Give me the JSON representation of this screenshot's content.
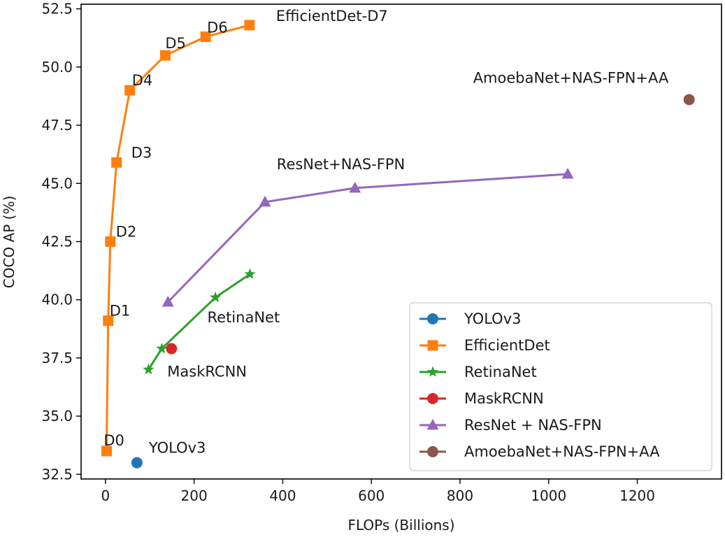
{
  "chart_data": {
    "type": "line",
    "xlabel": "FLOPs (Billions)",
    "ylabel": "COCO AP (%)",
    "xlim": [
      -55,
      1390
    ],
    "ylim": [
      32.3,
      52.7
    ],
    "xticks": [
      0,
      200,
      400,
      600,
      800,
      1000,
      1200
    ],
    "yticks": [
      32.5,
      35.0,
      37.5,
      40.0,
      42.5,
      45.0,
      47.5,
      50.0,
      52.5
    ],
    "xtick_labels": [
      "0",
      "200",
      "400",
      "600",
      "800",
      "1000",
      "1200"
    ],
    "ytick_labels": [
      "32.5",
      "35.0",
      "37.5",
      "40.0",
      "42.5",
      "45.0",
      "47.5",
      "50.0",
      "52.5"
    ],
    "legend_position": "lower-right",
    "series": [
      {
        "name": "YOLOv3",
        "color": "#1f77b4",
        "marker": "circle",
        "line": false,
        "x": [
          71
        ],
        "y": [
          33.0
        ]
      },
      {
        "name": "EfficientDet",
        "color": "#ff7f0e",
        "marker": "square",
        "line": true,
        "x": [
          2.5,
          6.1,
          11,
          25,
          55,
          135,
          226,
          325
        ],
        "y": [
          33.5,
          39.1,
          42.5,
          45.9,
          49.0,
          50.5,
          51.3,
          51.8
        ]
      },
      {
        "name": "RetinaNet",
        "color": "#2ca02c",
        "marker": "star",
        "line": true,
        "x": [
          97,
          127,
          248,
          326
        ],
        "y": [
          37.0,
          37.9,
          40.1,
          41.1
        ]
      },
      {
        "name": "MaskRCNN",
        "color": "#d62728",
        "marker": "circle",
        "line": false,
        "x": [
          149
        ],
        "y": [
          37.9
        ]
      },
      {
        "name": "ResNet + NAS-FPN",
        "color": "#9467bd",
        "marker": "triangle",
        "line": true,
        "x": [
          141,
          360,
          563,
          1043
        ],
        "y": [
          39.9,
          44.2,
          44.8,
          45.4
        ]
      },
      {
        "name": "AmoebaNet+NAS-FPN+AA",
        "color": "#8c564b",
        "marker": "circle",
        "line": false,
        "x": [
          1317
        ],
        "y": [
          48.6
        ]
      }
    ],
    "annotations": [
      {
        "text": "D0",
        "x": 2.5,
        "y": 33.5
      },
      {
        "text": "D1",
        "x": 6.1,
        "y": 39.1
      },
      {
        "text": "D2",
        "x": 11,
        "y": 42.5
      },
      {
        "text": "D3",
        "x": 25,
        "y": 45.9
      },
      {
        "text": "D4",
        "x": 55,
        "y": 49.0
      },
      {
        "text": "D5",
        "x": 135,
        "y": 50.5
      },
      {
        "text": "D6",
        "x": 226,
        "y": 51.3
      },
      {
        "text": "EfficientDet-D7",
        "x": 325,
        "y": 51.8
      },
      {
        "text": "YOLOv3",
        "x": 71,
        "y": 33.0
      },
      {
        "text": "MaskRCNN",
        "x": 149,
        "y": 37.9
      },
      {
        "text": "RetinaNet",
        "x": 326,
        "y": 41.1
      },
      {
        "text": "ResNet+NAS-FPN",
        "x": 563,
        "y": 44.8
      },
      {
        "text": "AmoebaNet+NAS-FPN+AA",
        "x": 1317,
        "y": 48.6
      }
    ]
  }
}
